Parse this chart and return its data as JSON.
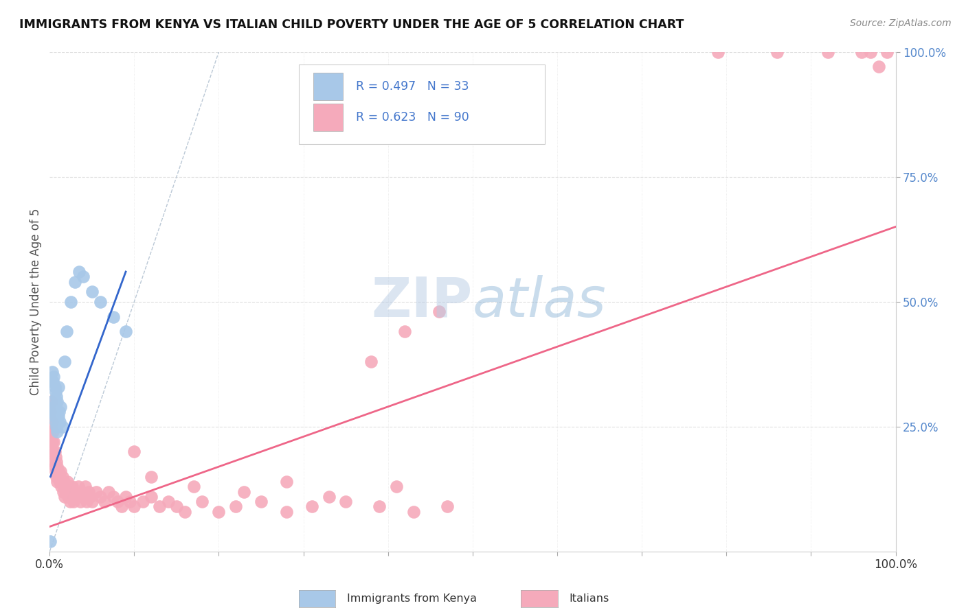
{
  "title": "IMMIGRANTS FROM KENYA VS ITALIAN CHILD POVERTY UNDER THE AGE OF 5 CORRELATION CHART",
  "source": "Source: ZipAtlas.com",
  "ylabel": "Child Poverty Under the Age of 5",
  "xlim": [
    0,
    1.0
  ],
  "ylim": [
    0,
    1.0
  ],
  "xtick_vals": [
    0.0,
    0.1,
    0.2,
    0.3,
    0.4,
    0.5,
    0.6,
    0.7,
    0.8,
    0.9,
    1.0
  ],
  "xtick_labels": [
    "0.0%",
    "",
    "",
    "",
    "",
    "",
    "",
    "",
    "",
    "",
    "100.0%"
  ],
  "ytick_vals": [
    0.25,
    0.5,
    0.75,
    1.0
  ],
  "ytick_labels": [
    "25.0%",
    "50.0%",
    "75.0%",
    "100.0%"
  ],
  "background_color": "#ffffff",
  "kenya_color": "#a8c8e8",
  "italian_color": "#f5aabb",
  "kenya_R": 0.497,
  "kenya_N": 33,
  "italian_R": 0.623,
  "italian_N": 90,
  "kenya_line_color": "#3366cc",
  "italian_line_color": "#ee6688",
  "legend_R_color": "#4477cc",
  "watermark_color": "#ccd8ee",
  "grid_color": "#e0e0e0",
  "kenya_x": [
    0.001,
    0.002,
    0.002,
    0.003,
    0.003,
    0.004,
    0.004,
    0.005,
    0.005,
    0.006,
    0.006,
    0.007,
    0.007,
    0.008,
    0.008,
    0.009,
    0.009,
    0.01,
    0.01,
    0.011,
    0.012,
    0.013,
    0.015,
    0.018,
    0.02,
    0.025,
    0.03,
    0.035,
    0.04,
    0.05,
    0.06,
    0.075,
    0.09
  ],
  "kenya_y": [
    0.02,
    0.28,
    0.34,
    0.3,
    0.36,
    0.28,
    0.34,
    0.29,
    0.35,
    0.27,
    0.33,
    0.26,
    0.32,
    0.25,
    0.31,
    0.24,
    0.3,
    0.27,
    0.33,
    0.28,
    0.26,
    0.29,
    0.25,
    0.38,
    0.44,
    0.5,
    0.54,
    0.56,
    0.55,
    0.52,
    0.5,
    0.47,
    0.44
  ],
  "italian_x": [
    0.001,
    0.002,
    0.002,
    0.003,
    0.003,
    0.004,
    0.004,
    0.005,
    0.005,
    0.006,
    0.006,
    0.007,
    0.007,
    0.008,
    0.008,
    0.009,
    0.009,
    0.01,
    0.011,
    0.012,
    0.013,
    0.014,
    0.015,
    0.016,
    0.017,
    0.018,
    0.019,
    0.02,
    0.021,
    0.022,
    0.023,
    0.024,
    0.025,
    0.026,
    0.027,
    0.028,
    0.03,
    0.032,
    0.034,
    0.036,
    0.038,
    0.04,
    0.042,
    0.044,
    0.046,
    0.048,
    0.05,
    0.055,
    0.06,
    0.065,
    0.07,
    0.075,
    0.08,
    0.085,
    0.09,
    0.095,
    0.1,
    0.11,
    0.12,
    0.13,
    0.14,
    0.15,
    0.16,
    0.18,
    0.2,
    0.22,
    0.25,
    0.28,
    0.31,
    0.35,
    0.39,
    0.43,
    0.47,
    0.38,
    0.42,
    0.46,
    0.79,
    0.86,
    0.92,
    0.96,
    0.97,
    0.98,
    0.99,
    0.12,
    0.17,
    0.23,
    0.28,
    0.33,
    0.41,
    0.1
  ],
  "italian_y": [
    0.28,
    0.3,
    0.24,
    0.26,
    0.22,
    0.24,
    0.2,
    0.22,
    0.18,
    0.2,
    0.17,
    0.19,
    0.16,
    0.18,
    0.15,
    0.17,
    0.14,
    0.16,
    0.15,
    0.14,
    0.16,
    0.13,
    0.15,
    0.12,
    0.14,
    0.11,
    0.13,
    0.12,
    0.14,
    0.11,
    0.13,
    0.1,
    0.12,
    0.11,
    0.13,
    0.1,
    0.12,
    0.11,
    0.13,
    0.1,
    0.12,
    0.11,
    0.13,
    0.1,
    0.12,
    0.11,
    0.1,
    0.12,
    0.11,
    0.1,
    0.12,
    0.11,
    0.1,
    0.09,
    0.11,
    0.1,
    0.09,
    0.1,
    0.11,
    0.09,
    0.1,
    0.09,
    0.08,
    0.1,
    0.08,
    0.09,
    0.1,
    0.08,
    0.09,
    0.1,
    0.09,
    0.08,
    0.09,
    0.38,
    0.44,
    0.48,
    1.0,
    1.0,
    1.0,
    1.0,
    1.0,
    0.97,
    1.0,
    0.15,
    0.13,
    0.12,
    0.14,
    0.11,
    0.13,
    0.2
  ],
  "italian_line_x": [
    0.0,
    1.0
  ],
  "italian_line_y": [
    0.05,
    0.65
  ],
  "kenya_line_x": [
    0.001,
    0.09
  ],
  "kenya_line_y": [
    0.15,
    0.56
  ],
  "dash_line_x": [
    0.0,
    0.2
  ],
  "dash_line_y": [
    0.0,
    1.0
  ]
}
